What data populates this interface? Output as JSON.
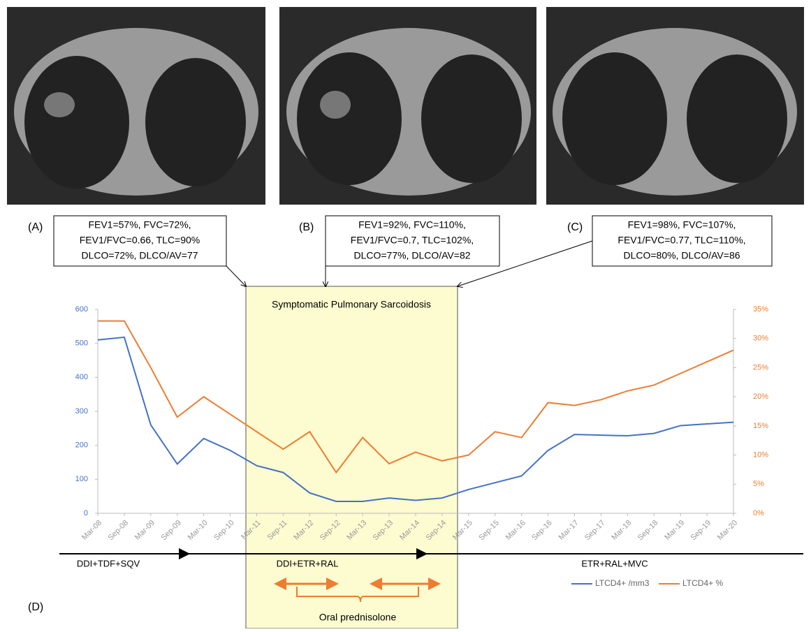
{
  "panels": [
    "(A)",
    "(B)",
    "(C)",
    "(D)"
  ],
  "pft_boxes": [
    [
      "FEV1=57%, FVC=72%,",
      "FEV1/FVC=0.66, TLC=90%",
      "DLCO=72%,  DLCO/AV=77"
    ],
    [
      "FEV1=92%, FVC=110%,",
      "FEV1/FVC=0.7, TLC=102%,",
      "DLCO=77%,  DLCO/AV=82"
    ],
    [
      "FEV1=98%, FVC=107%,",
      "FEV1/FVC=0.77, TLC=110%,",
      "DLCO=80%,  DLCO/AV=86"
    ]
  ],
  "chart_data": {
    "type": "line",
    "highlight_label": "Symptomatic Pulmonary Sarcoidosis",
    "categories": [
      "Mar-08",
      "Sep-08",
      "Mar-09",
      "Sep-09",
      "Mar-10",
      "Sep-10",
      "Mar-11",
      "Sep-11",
      "Mar-12",
      "Sep-12",
      "Mar-13",
      "Sep-13",
      "Mar-14",
      "Sep-14",
      "Mar-15",
      "Sep-15",
      "Mar-16",
      "Sep-16",
      "Mar-17",
      "Sep-17",
      "Mar-18",
      "Sep-18",
      "Mar-19",
      "Sep-19",
      "Mar-20"
    ],
    "series": [
      {
        "name": "LTCD4+ /mm3",
        "color": "#4472c4",
        "axis": "y",
        "values": [
          510,
          518,
          260,
          145,
          220,
          185,
          140,
          120,
          60,
          35,
          35,
          45,
          38,
          45,
          70,
          90,
          110,
          185,
          232,
          230,
          228,
          235,
          258,
          263,
          268
        ]
      },
      {
        "name": "LTCD4+ %",
        "color": "#ed7d31",
        "axis": "y2",
        "values": [
          33,
          33,
          25,
          16.5,
          20,
          17,
          14,
          11,
          14,
          7,
          13,
          8.5,
          10.5,
          9,
          10,
          14,
          13,
          19,
          18.5,
          19.5,
          21,
          22,
          24,
          26,
          28
        ]
      }
    ],
    "ylim": [
      0,
      600
    ],
    "yticks": [
      0,
      100,
      200,
      300,
      400,
      500,
      600
    ],
    "y2lim": [
      0,
      35
    ],
    "y2ticks": [
      {
        "value": 0,
        "label": "0%"
      },
      {
        "value": 5,
        "label": "5%"
      },
      {
        "value": 10,
        "label": "10%"
      },
      {
        "value": 15,
        "label": "15%"
      },
      {
        "value": 20,
        "label": "20%"
      },
      {
        "value": 25,
        "label": "25%"
      },
      {
        "value": 30,
        "label": "30%"
      },
      {
        "value": 35,
        "label": "35%"
      }
    ],
    "regimens": [
      "DDI+TDF+SQV",
      "DDI+ETR+RAL",
      "ETR+RAL+MVC"
    ],
    "prednisolone_label": "Oral prednisolone"
  }
}
